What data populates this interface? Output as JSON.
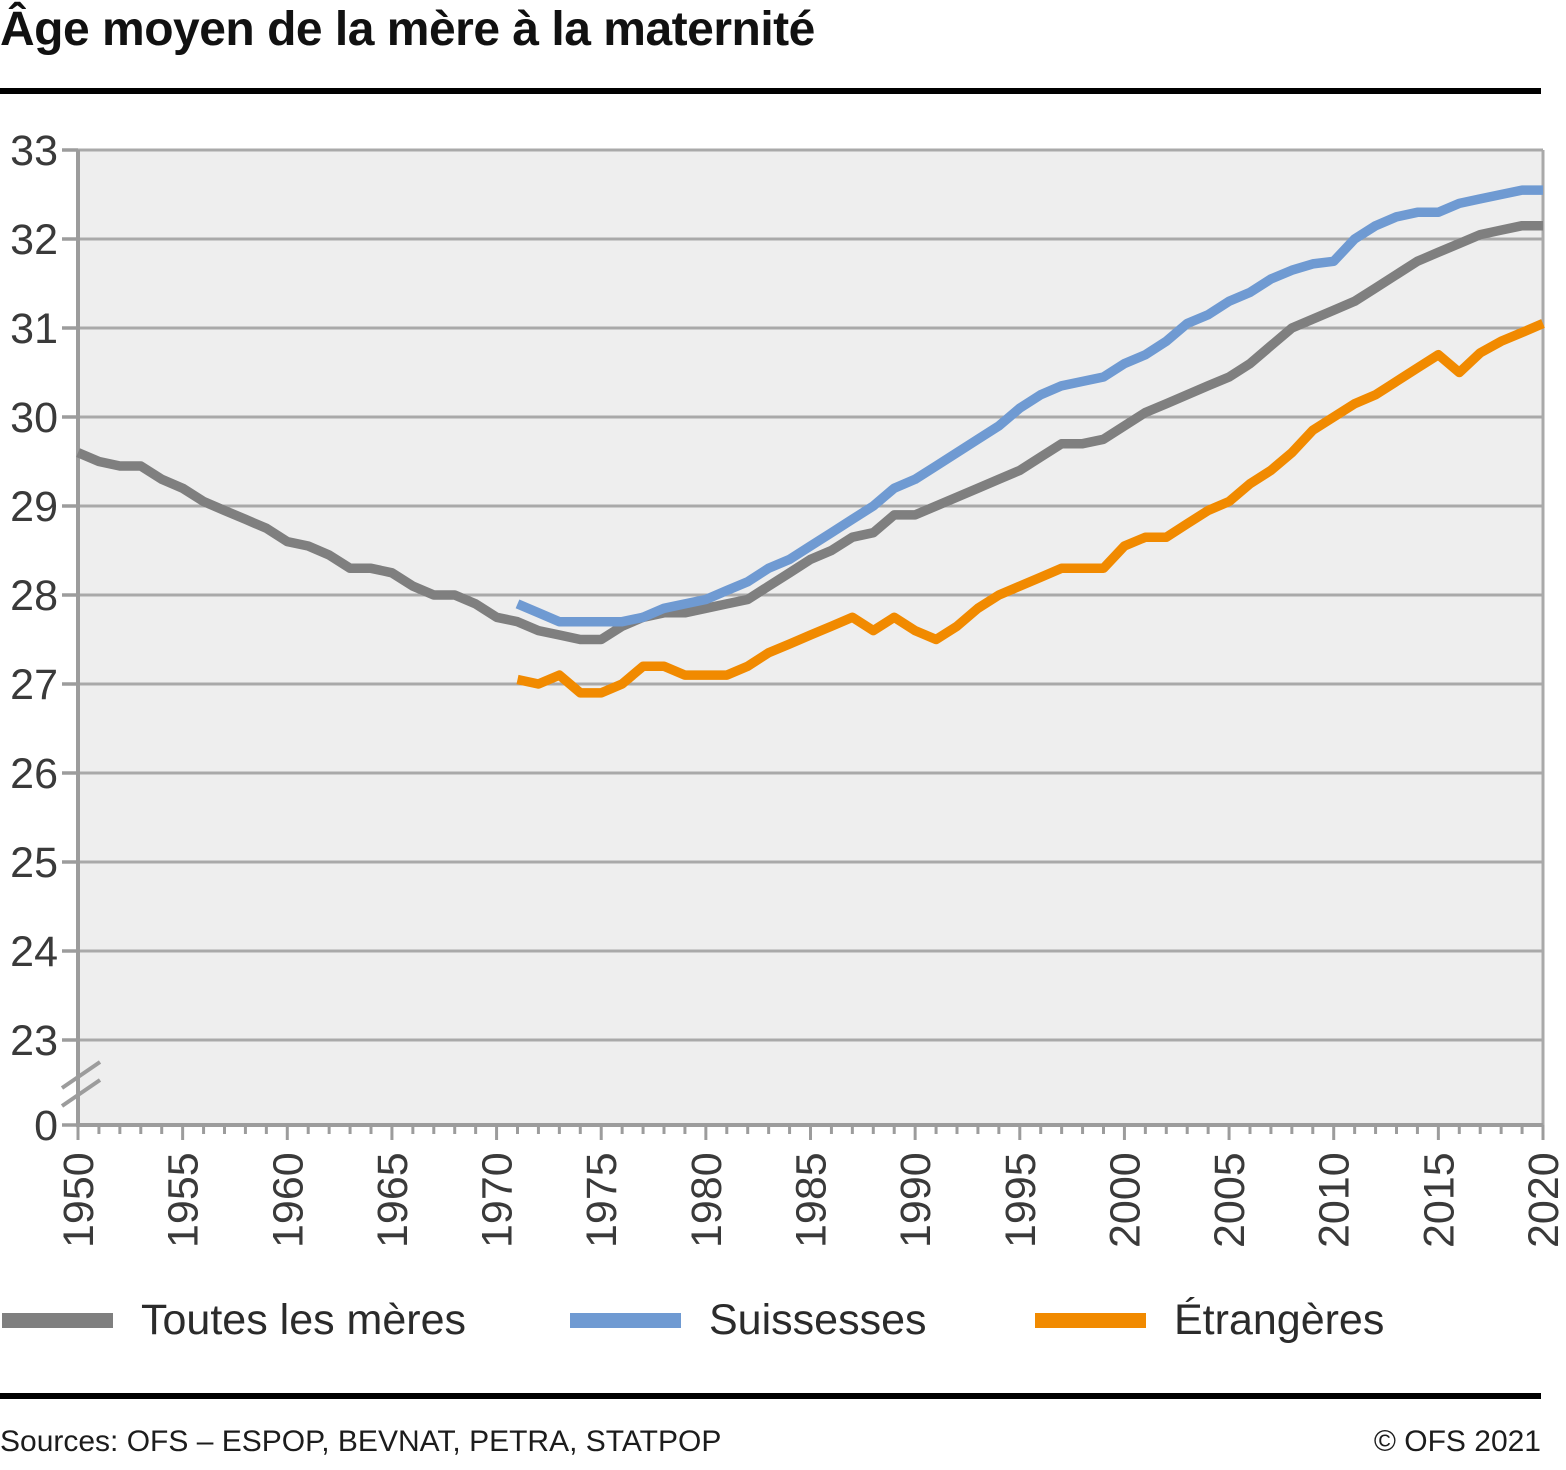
{
  "title": "Âge moyen de la mère à la maternité",
  "legend": {
    "items": [
      {
        "label": "Toutes les mères",
        "color": "#7f7f7f"
      },
      {
        "label": "Suissesses",
        "color": "#6f9ad2"
      },
      {
        "label": "Étrangères",
        "color": "#f18a00"
      }
    ]
  },
  "footer": {
    "sources": "Sources: OFS – ESPOP, BEVNAT, PETRA, STATPOP",
    "copyright": "© OFS 2021"
  },
  "chart_data": {
    "type": "line",
    "title": "Âge moyen de la mère à la maternité",
    "xlabel": "",
    "ylabel": "",
    "grid": true,
    "legend_position": "bottom",
    "xlim": [
      1950,
      2020
    ],
    "ylim": [
      23,
      33
    ],
    "axis_break": {
      "between": [
        0,
        23
      ]
    },
    "x_ticks": [
      1950,
      1955,
      1960,
      1965,
      1970,
      1975,
      1980,
      1985,
      1990,
      1995,
      2000,
      2005,
      2010,
      2015,
      2020
    ],
    "y_ticks": [
      33,
      32,
      31,
      30,
      29,
      28,
      27,
      26,
      25,
      24,
      23,
      0
    ],
    "y_gridlines": [
      33,
      32,
      31,
      30,
      29,
      28,
      27,
      26,
      25,
      24,
      23
    ],
    "series": [
      {
        "name": "Toutes les mères",
        "color": "#7f7f7f",
        "start_year": 1950,
        "values": [
          29.6,
          29.5,
          29.45,
          29.45,
          29.3,
          29.2,
          29.05,
          28.95,
          28.85,
          28.75,
          28.6,
          28.55,
          28.45,
          28.3,
          28.3,
          28.25,
          28.1,
          28.0,
          28.0,
          27.9,
          27.75,
          27.7,
          27.6,
          27.55,
          27.5,
          27.5,
          27.65,
          27.75,
          27.8,
          27.8,
          27.85,
          27.9,
          27.95,
          28.1,
          28.25,
          28.4,
          28.5,
          28.65,
          28.7,
          28.9,
          28.9,
          29.0,
          29.1,
          29.2,
          29.3,
          29.4,
          29.55,
          29.7,
          29.7,
          29.75,
          29.9,
          30.05,
          30.15,
          30.25,
          30.35,
          30.45,
          30.6,
          30.8,
          31.0,
          31.1,
          31.2,
          31.3,
          31.45,
          31.6,
          31.75,
          31.85,
          31.95,
          32.05,
          32.1,
          32.15,
          32.15
        ]
      },
      {
        "name": "Suissesses",
        "color": "#6f9ad2",
        "start_year": 1971,
        "values": [
          27.9,
          27.8,
          27.7,
          27.7,
          27.7,
          27.7,
          27.75,
          27.85,
          27.9,
          27.95,
          28.05,
          28.15,
          28.3,
          28.4,
          28.55,
          28.7,
          28.85,
          29.0,
          29.2,
          29.3,
          29.45,
          29.6,
          29.75,
          29.9,
          30.1,
          30.25,
          30.35,
          30.4,
          30.45,
          30.6,
          30.7,
          30.85,
          31.05,
          31.15,
          31.3,
          31.4,
          31.55,
          31.65,
          31.72,
          31.75,
          32.0,
          32.15,
          32.25,
          32.3,
          32.3,
          32.4,
          32.45,
          32.5,
          32.55,
          32.55
        ]
      },
      {
        "name": "Étrangères",
        "color": "#f18a00",
        "start_year": 1971,
        "values": [
          27.05,
          27.0,
          27.1,
          26.9,
          26.9,
          27.0,
          27.2,
          27.2,
          27.1,
          27.1,
          27.1,
          27.2,
          27.35,
          27.45,
          27.55,
          27.65,
          27.75,
          27.6,
          27.75,
          27.6,
          27.5,
          27.65,
          27.85,
          28.0,
          28.1,
          28.2,
          28.3,
          28.3,
          28.3,
          28.55,
          28.65,
          28.65,
          28.8,
          28.95,
          29.05,
          29.25,
          29.4,
          29.6,
          29.85,
          30.0,
          30.15,
          30.25,
          30.4,
          30.55,
          30.7,
          30.5,
          30.72,
          30.85,
          30.95,
          31.05
        ]
      }
    ]
  }
}
